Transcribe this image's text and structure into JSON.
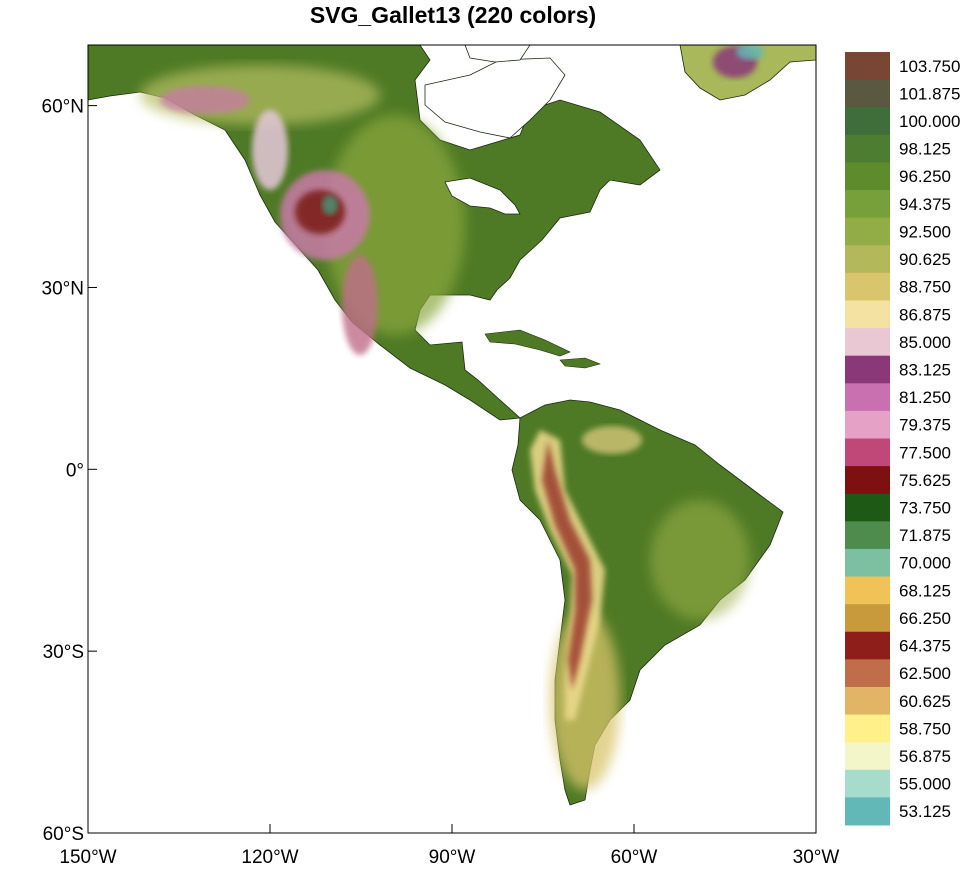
{
  "title": "SVG_Gallet13 (220 colors)",
  "map": {
    "projection": "cylindrical equidistant",
    "lon_range": [
      -150,
      -30
    ],
    "lat_range": [
      -60,
      70
    ],
    "lat_ticks": [
      {
        "value": 60,
        "label": "60°N"
      },
      {
        "value": 30,
        "label": "30°N"
      },
      {
        "value": 0,
        "label": "0°"
      },
      {
        "value": -30,
        "label": "30°S"
      },
      {
        "value": -60,
        "label": "60°S"
      }
    ],
    "lon_ticks": [
      {
        "value": -150,
        "label": "150°W"
      },
      {
        "value": -120,
        "label": "120°W"
      },
      {
        "value": -90,
        "label": "90°W"
      },
      {
        "value": -60,
        "label": "60°W"
      },
      {
        "value": -30,
        "label": "30°W"
      }
    ],
    "colors": {
      "lowland": "#4f7a25",
      "plains": "#86a239",
      "mid": "#e9d88a",
      "highland": "#c87aa7",
      "peak": "#7a1a18",
      "snow": "#79c4c2",
      "ocean": "#ffffff"
    }
  },
  "colorbar": {
    "labels": [
      "103.750",
      "101.875",
      "100.000",
      "98.125",
      "96.250",
      "94.375",
      "92.500",
      "90.625",
      "88.750",
      "86.875",
      "85.000",
      "83.125",
      "81.250",
      "79.375",
      "77.500",
      "75.625",
      "73.750",
      "71.875",
      "70.000",
      "68.125",
      "66.250",
      "64.375",
      "62.500",
      "60.625",
      "58.750",
      "56.875",
      "55.000",
      "53.125"
    ],
    "colors_top_to_bottom": [
      "#7a4634",
      "#5a5840",
      "#3f6e3a",
      "#4c7d30",
      "#5e8c2c",
      "#77a03a",
      "#92ad45",
      "#b3b85a",
      "#d8c56c",
      "#f3e2a2",
      "#e9c8d3",
      "#8a3878",
      "#c870b0",
      "#e6a2c6",
      "#c04878",
      "#7e1012",
      "#1e5a16",
      "#4e8c4e",
      "#7cbfa1",
      "#f0c258",
      "#c89a3c",
      "#8e1e1a",
      "#c06e4a",
      "#e2b466",
      "#fff08a",
      "#f2f6c8",
      "#a6dccc",
      "#62b8b6"
    ]
  }
}
